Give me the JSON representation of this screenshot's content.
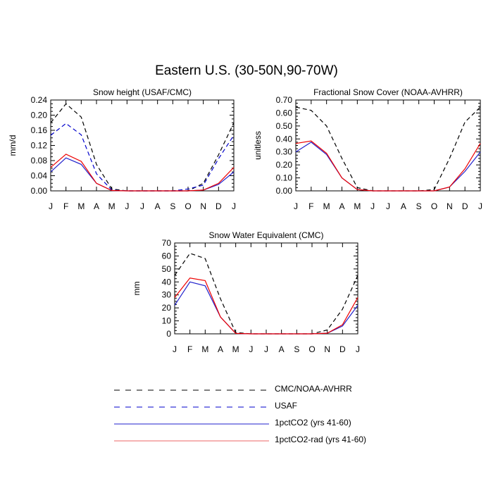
{
  "title": "Eastern U.S. (30-50N,90-70W)",
  "colors": {
    "obs": "#000000",
    "usaf": "#0000cc",
    "co2": "#2222cc",
    "co2rad": "#ee0000"
  },
  "legend": [
    {
      "label": "CMC/NOAA-AVHRR",
      "color": "#000000",
      "dash": true
    },
    {
      "label": "USAF",
      "color": "#0000cc",
      "dash": true
    },
    {
      "label": "1pctCO2 (yrs 41-60)",
      "color": "#2222cc",
      "dash": false
    },
    {
      "label": "1pctCO2-rad (yrs 41-60)",
      "color": "#ee0000",
      "dash": false
    }
  ],
  "chart_data": [
    {
      "type": "line",
      "title": "Snow height (USAF/CMC)",
      "ylabel": "mm/d",
      "categories": [
        "J",
        "F",
        "M",
        "A",
        "M",
        "J",
        "J",
        "A",
        "S",
        "O",
        "N",
        "D",
        "J"
      ],
      "ylim": [
        0,
        0.24
      ],
      "yticks": [
        0,
        0.04,
        0.08,
        0.12,
        0.16,
        0.2,
        0.24
      ],
      "ytick_labels": [
        "0.00",
        "0.04",
        "0.08",
        "0.12",
        "0.16",
        "0.20",
        "0.24"
      ],
      "series": [
        {
          "name": "CMC/NOAA-AVHRR",
          "color": "#000000",
          "dash": true,
          "values": [
            0.18,
            0.23,
            0.195,
            0.07,
            0.005,
            0.0,
            0.0,
            0.0,
            0.0,
            0.0,
            0.02,
            0.095,
            0.18
          ]
        },
        {
          "name": "USAF",
          "color": "#0000cc",
          "dash": true,
          "values": [
            0.147,
            0.178,
            0.148,
            0.045,
            0.002,
            0.0,
            0.0,
            0.0,
            0.0,
            0.005,
            0.015,
            0.085,
            0.147
          ]
        },
        {
          "name": "1pctCO2 (yrs 41-60)",
          "color": "#2222cc",
          "dash": false,
          "values": [
            0.05,
            0.087,
            0.07,
            0.02,
            0.001,
            0.0,
            0.0,
            0.0,
            0.0,
            0.0,
            0.002,
            0.017,
            0.05
          ]
        },
        {
          "name": "1pctCO2-rad (yrs 41-60)",
          "color": "#ee0000",
          "dash": false,
          "values": [
            0.062,
            0.097,
            0.078,
            0.02,
            0.001,
            0.0,
            0.0,
            0.0,
            0.0,
            0.0,
            0.002,
            0.02,
            0.062
          ]
        }
      ]
    },
    {
      "type": "line",
      "title": "Fractional Snow Cover (NOAA-AVHRR)",
      "ylabel": "unitless",
      "categories": [
        "J",
        "F",
        "M",
        "A",
        "M",
        "J",
        "J",
        "A",
        "S",
        "O",
        "N",
        "D",
        "J"
      ],
      "ylim": [
        0,
        0.7
      ],
      "yticks": [
        0,
        0.1,
        0.2,
        0.3,
        0.4,
        0.5,
        0.6,
        0.7
      ],
      "ytick_labels": [
        "0.00",
        "0.10",
        "0.20",
        "0.30",
        "0.40",
        "0.50",
        "0.60",
        "0.70"
      ],
      "series": [
        {
          "name": "CMC/NOAA-AVHRR",
          "color": "#000000",
          "dash": true,
          "values": [
            0.645,
            0.62,
            0.5,
            0.25,
            0.025,
            0.0,
            0.0,
            0.0,
            0.0,
            0.01,
            0.25,
            0.53,
            0.645
          ]
        },
        {
          "name": "1pctCO2 (yrs 41-60)",
          "color": "#2222cc",
          "dash": false,
          "values": [
            0.3,
            0.375,
            0.28,
            0.1,
            0.01,
            0.0,
            0.0,
            0.0,
            0.0,
            0.0,
            0.03,
            0.15,
            0.3
          ]
        },
        {
          "name": "1pctCO2-rad (yrs 41-60)",
          "color": "#ee0000",
          "dash": false,
          "values": [
            0.365,
            0.385,
            0.29,
            0.1,
            0.01,
            0.0,
            0.0,
            0.0,
            0.0,
            0.0,
            0.03,
            0.17,
            0.365
          ]
        }
      ]
    },
    {
      "type": "line",
      "title": "Snow Water Equivalent (CMC)",
      "ylabel": "mm",
      "categories": [
        "J",
        "F",
        "M",
        "A",
        "M",
        "J",
        "J",
        "A",
        "S",
        "O",
        "N",
        "D",
        "J"
      ],
      "ylim": [
        0,
        70
      ],
      "yticks": [
        0,
        10,
        20,
        30,
        40,
        50,
        60,
        70
      ],
      "ytick_labels": [
        "0",
        "10",
        "20",
        "30",
        "40",
        "50",
        "60",
        "70"
      ],
      "series": [
        {
          "name": "CMC/NOAA-AVHRR",
          "color": "#000000",
          "dash": true,
          "values": [
            45,
            62,
            58,
            27,
            1,
            0,
            0,
            0,
            0,
            0,
            3,
            19,
            45
          ]
        },
        {
          "name": "1pctCO2 (yrs 41-60)",
          "color": "#2222cc",
          "dash": false,
          "values": [
            22,
            40,
            37,
            13,
            0.3,
            0,
            0,
            0,
            0,
            0,
            0.5,
            6,
            22
          ]
        },
        {
          "name": "1pctCO2-rad (yrs 41-60)",
          "color": "#ee0000",
          "dash": false,
          "values": [
            28,
            43,
            41,
            13,
            0.3,
            0,
            0,
            0,
            0,
            0,
            0.5,
            7,
            28
          ]
        }
      ]
    }
  ]
}
